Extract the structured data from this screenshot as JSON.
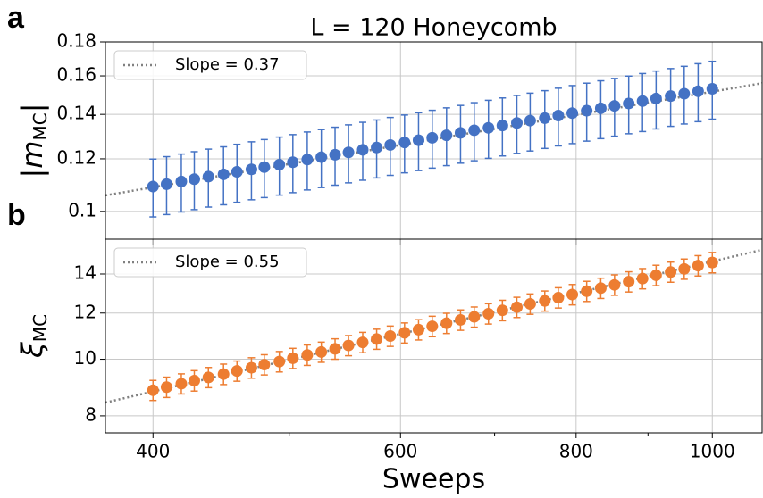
{
  "chart_data": [
    {
      "type": "errorbar",
      "panel_label": "a",
      "title": "L = 120 Honeycomb",
      "ylabel_parts": [
        "|m",
        "MC",
        "|"
      ],
      "xscale": "log",
      "yscale": "log",
      "grid": true,
      "legend": "upper left",
      "sharex": true,
      "xlim": [
        370,
        1085
      ],
      "ylim": [
        0.0908,
        0.18
      ],
      "yticks": [
        0.1,
        0.12,
        0.14,
        0.16,
        0.18
      ],
      "series": [
        {
          "name": "Slope = 0.37",
          "color": "#808080",
          "style": "dotted",
          "x": [
            370,
            1085
          ],
          "values": [
            0.1057,
            0.156
          ]
        },
        {
          "color": "#4472c4",
          "style": "markers",
          "x": [
            400,
            409,
            419,
            428,
            438,
            449,
            459,
            470,
            480,
            492,
            503,
            515,
            527,
            539,
            551,
            564,
            577,
            590,
            604,
            618,
            632,
            647,
            662,
            677,
            693,
            709,
            726,
            742,
            760,
            777,
            795,
            814,
            833,
            852,
            872,
            892,
            912,
            934,
            955,
            977,
            1000
          ],
          "values": [
            0.109,
            0.1099,
            0.1109,
            0.1118,
            0.1128,
            0.1137,
            0.1147,
            0.1157,
            0.1166,
            0.1176,
            0.1186,
            0.1197,
            0.1207,
            0.1217,
            0.1227,
            0.1238,
            0.1248,
            0.1259,
            0.127,
            0.128,
            0.1291,
            0.1302,
            0.1313,
            0.1325,
            0.1336,
            0.1347,
            0.1359,
            0.137,
            0.1382,
            0.1394,
            0.1406,
            0.1418,
            0.143,
            0.1442,
            0.1454,
            0.1466,
            0.1479,
            0.1492,
            0.1504,
            0.1517,
            0.153
          ],
          "errors": [
            0.0109,
            0.011,
            0.0111,
            0.0112,
            0.0113,
            0.0114,
            0.0115,
            0.0116,
            0.0117,
            0.0118,
            0.0119,
            0.012,
            0.0121,
            0.0122,
            0.0123,
            0.0124,
            0.0125,
            0.0126,
            0.0127,
            0.0128,
            0.0129,
            0.013,
            0.0131,
            0.0133,
            0.0134,
            0.0135,
            0.0136,
            0.0137,
            0.0138,
            0.0139,
            0.0141,
            0.0142,
            0.0143,
            0.0144,
            0.0145,
            0.0147,
            0.0148,
            0.0149,
            0.015,
            0.0152,
            0.0153
          ]
        }
      ]
    },
    {
      "type": "errorbar",
      "panel_label": "b",
      "ylabel_parts": [
        "ξ",
        "MC"
      ],
      "xlabel": "Sweeps",
      "xscale": "log",
      "yscale": "log",
      "grid": true,
      "legend": "upper left",
      "xlim": [
        370,
        1085
      ],
      "xticks": [
        400,
        600,
        800,
        1000
      ],
      "xminor": [
        500,
        700,
        900
      ],
      "ylim": [
        7.48,
        16.06
      ],
      "yticks": [
        8,
        10,
        12,
        14
      ],
      "series": [
        {
          "name": "Slope = 0.55",
          "color": "#808080",
          "style": "dotted",
          "x": [
            370,
            1085
          ],
          "values": [
            8.43,
            15.4
          ]
        },
        {
          "color": "#ed7d31",
          "style": "markers",
          "x": [
            400,
            409,
            419,
            428,
            438,
            449,
            459,
            470,
            480,
            492,
            503,
            515,
            527,
            539,
            551,
            564,
            577,
            590,
            604,
            618,
            632,
            647,
            662,
            677,
            693,
            709,
            726,
            742,
            760,
            777,
            795,
            814,
            833,
            852,
            872,
            892,
            912,
            934,
            955,
            977,
            1000
          ],
          "values": [
            8.85,
            8.96,
            9.08,
            9.19,
            9.31,
            9.43,
            9.55,
            9.67,
            9.79,
            9.91,
            10.04,
            10.17,
            10.29,
            10.42,
            10.56,
            10.69,
            10.83,
            10.96,
            11.1,
            11.24,
            11.39,
            11.53,
            11.68,
            11.82,
            11.97,
            12.13,
            12.28,
            12.44,
            12.59,
            12.75,
            12.91,
            13.08,
            13.24,
            13.41,
            13.58,
            13.75,
            13.93,
            14.11,
            14.28,
            14.47,
            14.65
          ],
          "errors": [
            0.35,
            0.36,
            0.36,
            0.37,
            0.37,
            0.38,
            0.38,
            0.39,
            0.39,
            0.4,
            0.4,
            0.41,
            0.41,
            0.42,
            0.42,
            0.43,
            0.43,
            0.44,
            0.44,
            0.45,
            0.46,
            0.46,
            0.47,
            0.47,
            0.48,
            0.49,
            0.49,
            0.5,
            0.5,
            0.51,
            0.52,
            0.52,
            0.53,
            0.54,
            0.54,
            0.55,
            0.56,
            0.56,
            0.57,
            0.58,
            0.59
          ]
        }
      ]
    }
  ]
}
